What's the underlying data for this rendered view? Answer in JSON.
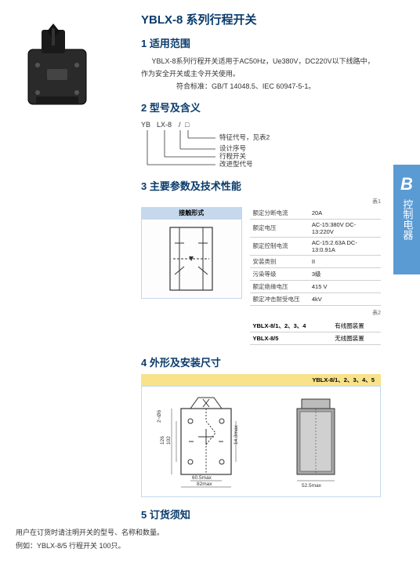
{
  "side_tab": {
    "letter": "B",
    "label": "控制电器"
  },
  "title": "YBLX-8 系列行程开关",
  "s1": {
    "heading": "1 适用范围",
    "p1": "YBLX-8系列行程开关适用于AC50Hz，Ue380V，DC220V以下线路中，作为安全开关或主令开关使用。",
    "p2": "符合标准：GB/T 14048.5、IEC 60947-5-1。"
  },
  "s2": {
    "heading": "2 型号及含义",
    "diagram": {
      "left_labels": [
        "YB",
        "LX-8",
        "/",
        "□"
      ],
      "right_labels": [
        "特征代号，见表2",
        "设计序号",
        "行程开关",
        "改进型代号"
      ]
    }
  },
  "s3": {
    "heading": "3 主要参数及技术性能",
    "caption1": "表1",
    "caption2": "表2",
    "contact_header": "接触形式",
    "specs": [
      {
        "k": "额定分断电流",
        "v": "20A"
      },
      {
        "k": "额定电压",
        "v": "AC-15:380V   DC-13:220V"
      },
      {
        "k": "额定控制电流",
        "v": "AC-15:2.63A   DC-13:0.91A"
      },
      {
        "k": "安装类别",
        "v": "II"
      },
      {
        "k": "污染等级",
        "v": "3级"
      },
      {
        "k": "额定绝缘电压",
        "v": "415 V"
      },
      {
        "k": "额定冲击耐受电压",
        "v": "4kV"
      }
    ],
    "variants": [
      {
        "model": "YBLX-8/1、2、3、4",
        "desc": "有线圈装置"
      },
      {
        "model": "YBLX-8/5",
        "desc": "无线圈装置"
      }
    ]
  },
  "s4": {
    "heading": "4 外形及安装尺寸",
    "bar": "YBLX-8/1、2、3、4、5",
    "dims": {
      "left": {
        "holes": "2~Ø6",
        "h_total": "126",
        "h_inner": "102",
        "w_holes": "60.5max",
        "w_total": "82max",
        "h_side": "14.3max"
      },
      "right": {
        "w": "52.5max"
      }
    }
  },
  "s5": {
    "heading": "5 订货须知",
    "l1": "用户在订货时请注明开关的型号、名称和数量。",
    "l2": "例如：YBLX-8/5    行程开关    100只。"
  },
  "colors": {
    "accent": "#0a3b6b",
    "tab_blue": "#5a9bd4",
    "header_bg": "#c5d8ec",
    "yellow": "#f8e28a"
  }
}
